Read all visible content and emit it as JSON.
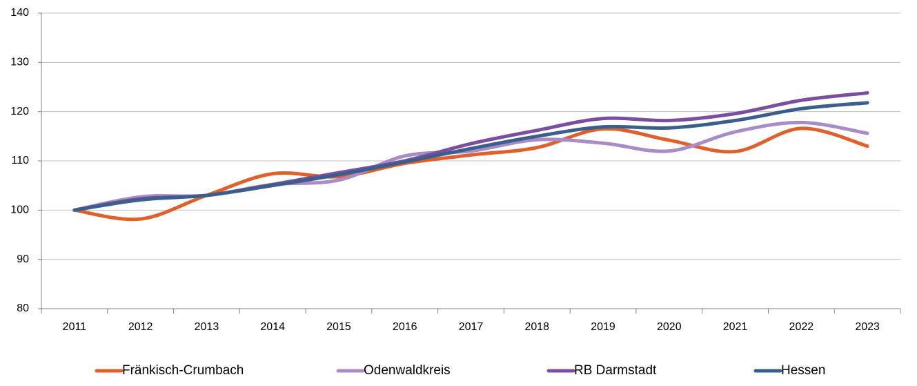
{
  "chart_data": {
    "type": "line",
    "categories": [
      "2011",
      "2012",
      "2013",
      "2014",
      "2015",
      "2016",
      "2017",
      "2018",
      "2019",
      "2020",
      "2021",
      "2022",
      "2023"
    ],
    "series": [
      {
        "name": "Fränkisch-Crumbach",
        "color": "#e0602b",
        "values": [
          100,
          98.2,
          103,
          107.4,
          106.8,
          109.5,
          111.2,
          112.7,
          116.5,
          114.2,
          111.9,
          116.6,
          113
        ]
      },
      {
        "name": "Odenwaldkreis",
        "color": "#a88cc8",
        "values": [
          100,
          102.7,
          103,
          105.2,
          106.1,
          111,
          112,
          114.3,
          113.6,
          112,
          115.9,
          117.8,
          115.6
        ]
      },
      {
        "name": "RB Darmstadt",
        "color": "#7b4fa0",
        "values": [
          100,
          102.3,
          103,
          105.2,
          107.6,
          110,
          113.5,
          116.2,
          118.6,
          118.2,
          119.6,
          122.3,
          123.8
        ]
      },
      {
        "name": "Hessen",
        "color": "#3a5f8c",
        "values": [
          100,
          102.1,
          103,
          105,
          107.2,
          109.8,
          112.5,
          115,
          116.9,
          116.7,
          118.2,
          120.6,
          121.8
        ]
      }
    ],
    "ylim": [
      80,
      140
    ],
    "yticks": [
      80,
      90,
      100,
      110,
      120,
      130,
      140
    ],
    "grid": true,
    "smooth": true,
    "legend": "bottom"
  }
}
